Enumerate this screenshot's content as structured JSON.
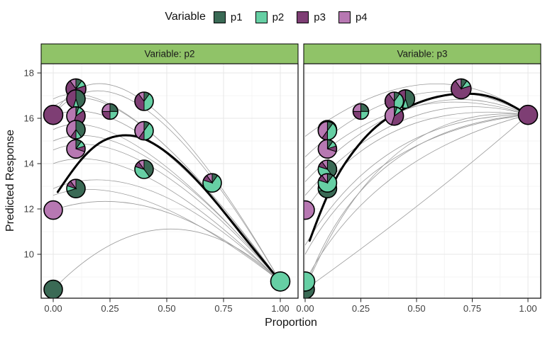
{
  "chart_data": {
    "type": "scatter",
    "subtype": "faceted mixture-design response-trace plot with pie-glyph points",
    "x_label": "Proportion",
    "y_label": "Predicted Response",
    "x_ticks": {
      "values": [
        0,
        0.25,
        0.5,
        0.75,
        1
      ],
      "labels": [
        "0.00",
        "0.25",
        "0.50",
        "0.75",
        "1.00"
      ]
    },
    "y_ticks": {
      "values": [
        10,
        12,
        14,
        16,
        18
      ],
      "labels": [
        "10",
        "12",
        "14",
        "16",
        "18"
      ]
    },
    "x_minor": [
      0.125,
      0.375,
      0.625,
      0.875
    ],
    "y_minor": [
      9,
      11,
      13,
      15,
      17
    ],
    "y_range": [
      8.0,
      18.4
    ],
    "legend": {
      "title": "Variable",
      "entries": [
        {
          "id": "p1",
          "label": "p1",
          "color": "#3a6a55"
        },
        {
          "id": "p2",
          "label": "p2",
          "color": "#66cfa4"
        },
        {
          "id": "p3",
          "label": "p3",
          "color": "#7e3e74"
        },
        {
          "id": "p4",
          "label": "p4",
          "color": "#b778b2"
        }
      ]
    },
    "style": {
      "strip_fill": "#90c368",
      "strip_border": "#000000",
      "strip_text": "#1a1a1a",
      "panel_border": "#1a1a1a",
      "grid_major": "#e7e7e7",
      "grid_minor": "#f4f4f4",
      "thin_curve": "#9b9b9b",
      "thick_curve": "#000000",
      "pie_stroke": "#000000",
      "tick_color": "#222222",
      "tick_label_color": "#404040",
      "background": "#ffffff"
    },
    "slice_order": [
      "p1",
      "p2",
      "p3",
      "p4"
    ],
    "slice_start": "12-oclock-clockwise",
    "design_points": [
      {
        "id": "A",
        "mix": {
          "p1": 1,
          "p2": 0,
          "p3": 0,
          "p4": 0
        },
        "y": 8.45,
        "r": 13
      },
      {
        "id": "B",
        "mix": {
          "p1": 0,
          "p2": 1,
          "p3": 0,
          "p4": 0
        },
        "y": 8.8,
        "r": 13.5
      },
      {
        "id": "C",
        "mix": {
          "p1": 0,
          "p2": 0,
          "p3": 1,
          "p4": 0
        },
        "y": 16.15,
        "r": 13.5
      },
      {
        "id": "D",
        "mix": {
          "p1": 0,
          "p2": 0,
          "p3": 0,
          "p4": 1
        },
        "y": 11.95,
        "r": 13
      },
      {
        "id": "E",
        "mix": {
          "p1": 0.25,
          "p2": 0.25,
          "p3": 0.25,
          "p4": 0.25
        },
        "y": 16.3,
        "r": 11
      },
      {
        "id": "F",
        "mix": {
          "p1": 0.1,
          "p2": 0.1,
          "p3": 0.7,
          "p4": 0.1
        },
        "y": 17.3,
        "r": 14
      },
      {
        "id": "G",
        "mix": {
          "p1": 0.45,
          "p2": 0.1,
          "p3": 0.45,
          "p4": 0
        },
        "y": 16.85,
        "r": 13
      },
      {
        "id": "H",
        "mix": {
          "p1": 0.1,
          "p2": 0.4,
          "p3": 0.4,
          "p4": 0.1
        },
        "y": 16.75,
        "r": 13
      },
      {
        "id": "I",
        "mix": {
          "p1": 0.05,
          "p2": 0.1,
          "p3": 0.4,
          "p4": 0.45
        },
        "y": 16.1,
        "r": 13
      },
      {
        "id": "J",
        "mix": {
          "p1": 0.4,
          "p2": 0.1,
          "p3": 0.1,
          "p4": 0.4
        },
        "y": 15.5,
        "r": 13
      },
      {
        "id": "K",
        "mix": {
          "p1": 0.1,
          "p2": 0.4,
          "p3": 0.1,
          "p4": 0.4
        },
        "y": 15.45,
        "r": 13
      },
      {
        "id": "L",
        "mix": {
          "p1": 0.1,
          "p2": 0.1,
          "p3": 0.1,
          "p4": 0.7
        },
        "y": 14.65,
        "r": 13
      },
      {
        "id": "M",
        "mix": {
          "p1": 0.4,
          "p2": 0.4,
          "p3": 0.1,
          "p4": 0.1
        },
        "y": 13.75,
        "r": 13
      },
      {
        "id": "N",
        "mix": {
          "p1": 0.1,
          "p2": 0.7,
          "p3": 0.1,
          "p4": 0.1
        },
        "y": 13.15,
        "r": 13
      },
      {
        "id": "O",
        "mix": {
          "p1": 0.7,
          "p2": 0.1,
          "p3": 0.1,
          "p4": 0.1
        },
        "y": 12.9,
        "r": 13
      }
    ],
    "panels": [
      {
        "label": "Variable: p2",
        "variable": "p2",
        "draw_order": [
          "F",
          "G",
          "C",
          "H",
          "E",
          "I",
          "K",
          "J",
          "L",
          "D",
          "M",
          "O",
          "N",
          "A",
          "B"
        ],
        "thick_curve": [
          [
            0.02,
            12.75
          ],
          [
            0.08,
            13.65
          ],
          [
            0.15,
            14.5
          ],
          [
            0.22,
            15.05
          ],
          [
            0.3,
            15.28
          ],
          [
            0.38,
            15.2
          ],
          [
            0.46,
            14.8
          ],
          [
            0.55,
            14.1
          ],
          [
            0.64,
            13.2
          ],
          [
            0.73,
            12.15
          ],
          [
            0.82,
            11.0
          ],
          [
            0.91,
            9.9
          ],
          [
            1,
            8.8
          ]
        ],
        "thin_curves": [
          {
            "from": [
              0,
              16.15
            ],
            "ctrl": [
              0.3,
              21.0
            ],
            "to": [
              1,
              8.8
            ]
          },
          {
            "from": [
              0,
              16.15
            ],
            "ctrl": [
              0.33,
              20.2
            ],
            "to": [
              1,
              8.8
            ]
          },
          {
            "from": [
              0,
              16.85
            ],
            "ctrl": [
              0.3,
              18.4
            ],
            "to": [
              1,
              8.8
            ]
          },
          {
            "from": [
              0,
              16.5
            ],
            "ctrl": [
              0.28,
              18.7
            ],
            "to": [
              1,
              8.8
            ]
          },
          {
            "from": [
              0,
              16.1
            ],
            "ctrl": [
              0.35,
              17.6
            ],
            "to": [
              1,
              8.8
            ]
          },
          {
            "from": [
              0,
              15.5
            ],
            "ctrl": [
              0.3,
              17.0
            ],
            "to": [
              1,
              8.8
            ]
          },
          {
            "from": [
              0,
              15.0
            ],
            "ctrl": [
              0.35,
              16.5
            ],
            "to": [
              1,
              8.8
            ]
          },
          {
            "from": [
              0,
              14.6
            ],
            "ctrl": [
              0.35,
              16.1
            ],
            "to": [
              1,
              8.8
            ]
          },
          {
            "from": [
              0,
              14.0
            ],
            "ctrl": [
              0.35,
              15.3
            ],
            "to": [
              1,
              8.8
            ]
          },
          {
            "from": [
              0,
              12.9
            ],
            "ctrl": [
              0.4,
              14.6
            ],
            "to": [
              1,
              8.8
            ]
          },
          {
            "from": [
              0,
              12.6
            ],
            "ctrl": [
              0.35,
              13.9
            ],
            "to": [
              1,
              8.8
            ]
          },
          {
            "from": [
              0,
              11.95
            ],
            "ctrl": [
              0.45,
              13.5
            ],
            "to": [
              1,
              8.8
            ]
          },
          {
            "from": [
              0,
              8.45
            ],
            "ctrl": [
              0.5,
              13.6
            ],
            "to": [
              1,
              8.8
            ]
          }
        ]
      },
      {
        "label": "Variable: p3",
        "variable": "p3",
        "draw_order": [
          "F",
          "G",
          "H",
          "E",
          "I",
          "J",
          "K",
          "L",
          "C",
          "M",
          "O",
          "N",
          "D",
          "A",
          "B"
        ],
        "thick_curve": [
          [
            0.02,
            10.6
          ],
          [
            0.08,
            12.2
          ],
          [
            0.15,
            13.6
          ],
          [
            0.22,
            14.6
          ],
          [
            0.3,
            15.5
          ],
          [
            0.38,
            16.1
          ],
          [
            0.46,
            16.5
          ],
          [
            0.55,
            16.85
          ],
          [
            0.64,
            17.05
          ],
          [
            0.72,
            17.1
          ],
          [
            0.8,
            17.05
          ],
          [
            0.88,
            16.8
          ],
          [
            0.94,
            16.5
          ],
          [
            1,
            16.15
          ]
        ],
        "thin_curves": [
          {
            "from": [
              0,
              8.45
            ],
            "ctrl": [
              0.25,
              15.6
            ],
            "to": [
              1,
              16.15
            ]
          },
          {
            "from": [
              0,
              8.45
            ],
            "ctrl": [
              0.35,
              16.8
            ],
            "to": [
              1,
              16.15
            ]
          },
          {
            "from": [
              0,
              8.8
            ],
            "ctrl": [
              0.3,
              14.4
            ],
            "to": [
              1,
              16.15
            ]
          },
          {
            "from": [
              0,
              10.4
            ],
            "ctrl": [
              0.35,
              16.2
            ],
            "to": [
              1,
              16.15
            ]
          },
          {
            "from": [
              0,
              11.95
            ],
            "ctrl": [
              0.35,
              17.0
            ],
            "to": [
              1,
              16.15
            ]
          },
          {
            "from": [
              0,
              12.6
            ],
            "ctrl": [
              0.45,
              17.7
            ],
            "to": [
              1,
              16.15
            ]
          },
          {
            "from": [
              0,
              13.2
            ],
            "ctrl": [
              0.5,
              18.4
            ],
            "to": [
              1,
              16.15
            ]
          },
          {
            "from": [
              0,
              13.8
            ],
            "ctrl": [
              0.45,
              18.0
            ],
            "to": [
              1,
              16.15
            ]
          },
          {
            "from": [
              0,
              14.3
            ],
            "ctrl": [
              0.5,
              18.9
            ],
            "to": [
              1,
              16.15
            ]
          },
          {
            "from": [
              0,
              15.2
            ],
            "ctrl": [
              0.55,
              19.3
            ],
            "to": [
              1,
              16.15
            ]
          },
          {
            "from": [
              0,
              10.0
            ],
            "ctrl": [
              0.3,
              15.4
            ],
            "to": [
              1,
              16.15
            ]
          },
          {
            "from": [
              0,
              8.45
            ],
            "ctrl": [
              0.55,
              12.3
            ],
            "to": [
              1,
              16.15
            ]
          }
        ]
      }
    ]
  }
}
